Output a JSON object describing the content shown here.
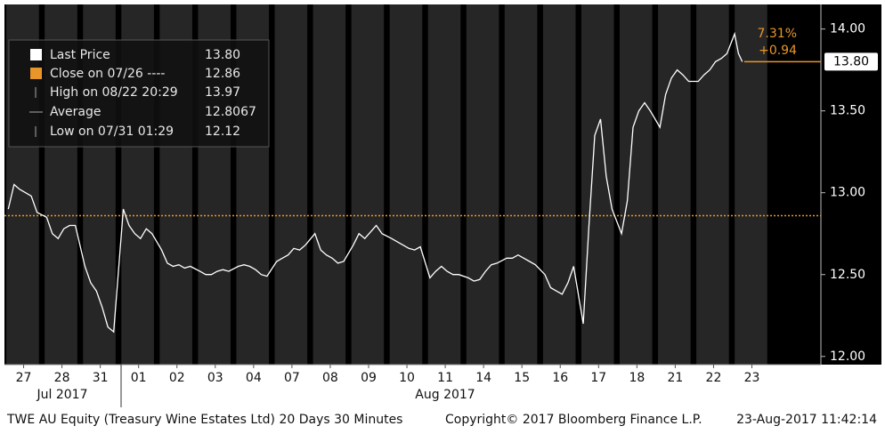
{
  "chart_data": {
    "type": "line",
    "series": [
      {
        "name": "Last Price",
        "color": "#ffffff",
        "x": [
          -0.4,
          -0.25,
          -0.1,
          0.05,
          0.2,
          0.35,
          0.6,
          0.75,
          0.9,
          1.05,
          1.2,
          1.35,
          1.6,
          1.75,
          1.9,
          2.05,
          2.2,
          2.35,
          2.6,
          2.75,
          2.9,
          3.05,
          3.2,
          3.35,
          3.6,
          3.75,
          3.9,
          4.05,
          4.2,
          4.35,
          4.6,
          4.75,
          4.9,
          5.05,
          5.2,
          5.35,
          5.6,
          5.75,
          5.9,
          6.05,
          6.2,
          6.35,
          6.6,
          6.75,
          6.9,
          7.05,
          7.2,
          7.35,
          7.6,
          7.75,
          7.9,
          8.05,
          8.2,
          8.35,
          8.6,
          8.75,
          8.9,
          9.05,
          9.2,
          9.35,
          9.6,
          9.75,
          9.9,
          10.05,
          10.2,
          10.35,
          10.6,
          10.75,
          10.9,
          11.05,
          11.2,
          11.35,
          11.6,
          11.75,
          11.9,
          12.05,
          12.2,
          12.35,
          12.6,
          12.75,
          12.9,
          13.05,
          13.2,
          13.35,
          13.6,
          13.75,
          13.9,
          14.05,
          14.2,
          14.35,
          14.6,
          14.75,
          14.9,
          15.05,
          15.2,
          15.35,
          15.6,
          15.75,
          15.9,
          16.05,
          16.2,
          16.35,
          16.6,
          16.75,
          16.9,
          17.05,
          17.2,
          17.35,
          17.6,
          17.75,
          17.9,
          18.05,
          18.2,
          18.35,
          18.55,
          18.65,
          18.75
        ],
        "values": [
          12.9,
          13.05,
          13.02,
          13.0,
          12.98,
          12.88,
          12.85,
          12.75,
          12.72,
          12.78,
          12.8,
          12.8,
          12.55,
          12.45,
          12.4,
          12.3,
          12.18,
          12.15,
          12.9,
          12.8,
          12.75,
          12.72,
          12.78,
          12.75,
          12.65,
          12.57,
          12.55,
          12.56,
          12.54,
          12.55,
          12.52,
          12.5,
          12.5,
          12.52,
          12.53,
          12.52,
          12.55,
          12.56,
          12.55,
          12.53,
          12.5,
          12.49,
          12.58,
          12.6,
          12.62,
          12.66,
          12.65,
          12.68,
          12.75,
          12.65,
          12.62,
          12.6,
          12.57,
          12.58,
          12.68,
          12.75,
          12.72,
          12.76,
          12.8,
          12.75,
          12.72,
          12.7,
          12.68,
          12.66,
          12.65,
          12.67,
          12.48,
          12.52,
          12.55,
          12.52,
          12.5,
          12.5,
          12.48,
          12.46,
          12.47,
          12.52,
          12.56,
          12.57,
          12.6,
          12.6,
          12.62,
          12.6,
          12.58,
          12.56,
          12.5,
          12.42,
          12.4,
          12.38,
          12.45,
          12.55,
          12.2,
          12.8,
          13.35,
          13.45,
          13.1,
          12.9,
          12.75,
          12.95,
          13.4,
          13.5,
          13.55,
          13.5,
          13.4,
          13.6,
          13.7,
          13.75,
          13.72,
          13.68,
          13.68,
          13.72,
          13.75,
          13.8,
          13.82,
          13.85,
          13.97,
          13.85,
          13.8
        ]
      }
    ],
    "xlim": [
      -0.5,
      20.8
    ],
    "ylim": [
      11.95,
      14.15
    ],
    "xticks": [
      {
        "value": 0,
        "label": "27"
      },
      {
        "value": 1,
        "label": "28"
      },
      {
        "value": 2,
        "label": "31"
      },
      {
        "value": 3,
        "label": "01"
      },
      {
        "value": 4,
        "label": "02"
      },
      {
        "value": 5,
        "label": "03"
      },
      {
        "value": 6,
        "label": "04"
      },
      {
        "value": 7,
        "label": "07"
      },
      {
        "value": 8,
        "label": "08"
      },
      {
        "value": 9,
        "label": "09"
      },
      {
        "value": 10,
        "label": "10"
      },
      {
        "value": 11,
        "label": "11"
      },
      {
        "value": 12,
        "label": "14"
      },
      {
        "value": 13,
        "label": "15"
      },
      {
        "value": 14,
        "label": "16"
      },
      {
        "value": 15,
        "label": "17"
      },
      {
        "value": 16,
        "label": "18"
      },
      {
        "value": 17,
        "label": "21"
      },
      {
        "value": 18,
        "label": "22"
      },
      {
        "value": 19,
        "label": "23"
      }
    ],
    "yticks": [
      {
        "value": 12,
        "label": "12.00"
      },
      {
        "value": 12.5,
        "label": "12.50"
      },
      {
        "value": 13,
        "label": "13.00"
      },
      {
        "value": 13.5,
        "label": "13.50"
      },
      {
        "value": 14,
        "label": "14.00"
      }
    ],
    "months": [
      "Jul 2017",
      "Aug 2017"
    ],
    "close_line": {
      "value": 12.86,
      "color": "#e8962a"
    },
    "last_price": {
      "value": 13.8,
      "label": "13.80"
    },
    "change_pct": "7.31%",
    "change_abs": "+0.94",
    "legend": [
      {
        "label": "Last Price",
        "value": "13.80"
      },
      {
        "label": "Close on 07/26 ----",
        "value": "12.86"
      },
      {
        "label": "High on 08/22 20:29",
        "value": "13.97"
      },
      {
        "label": "Average",
        "value": "12.8067"
      },
      {
        "label": "Low on 07/31 01:29",
        "value": "12.12"
      }
    ],
    "footer": {
      "left": "TWE AU Equity (Treasury Wine Estates Ltd) 20 Days 30 Minutes",
      "center": "Copyright© 2017 Bloomberg Finance L.P.",
      "right": "23-Aug-2017 11:42:14"
    }
  }
}
